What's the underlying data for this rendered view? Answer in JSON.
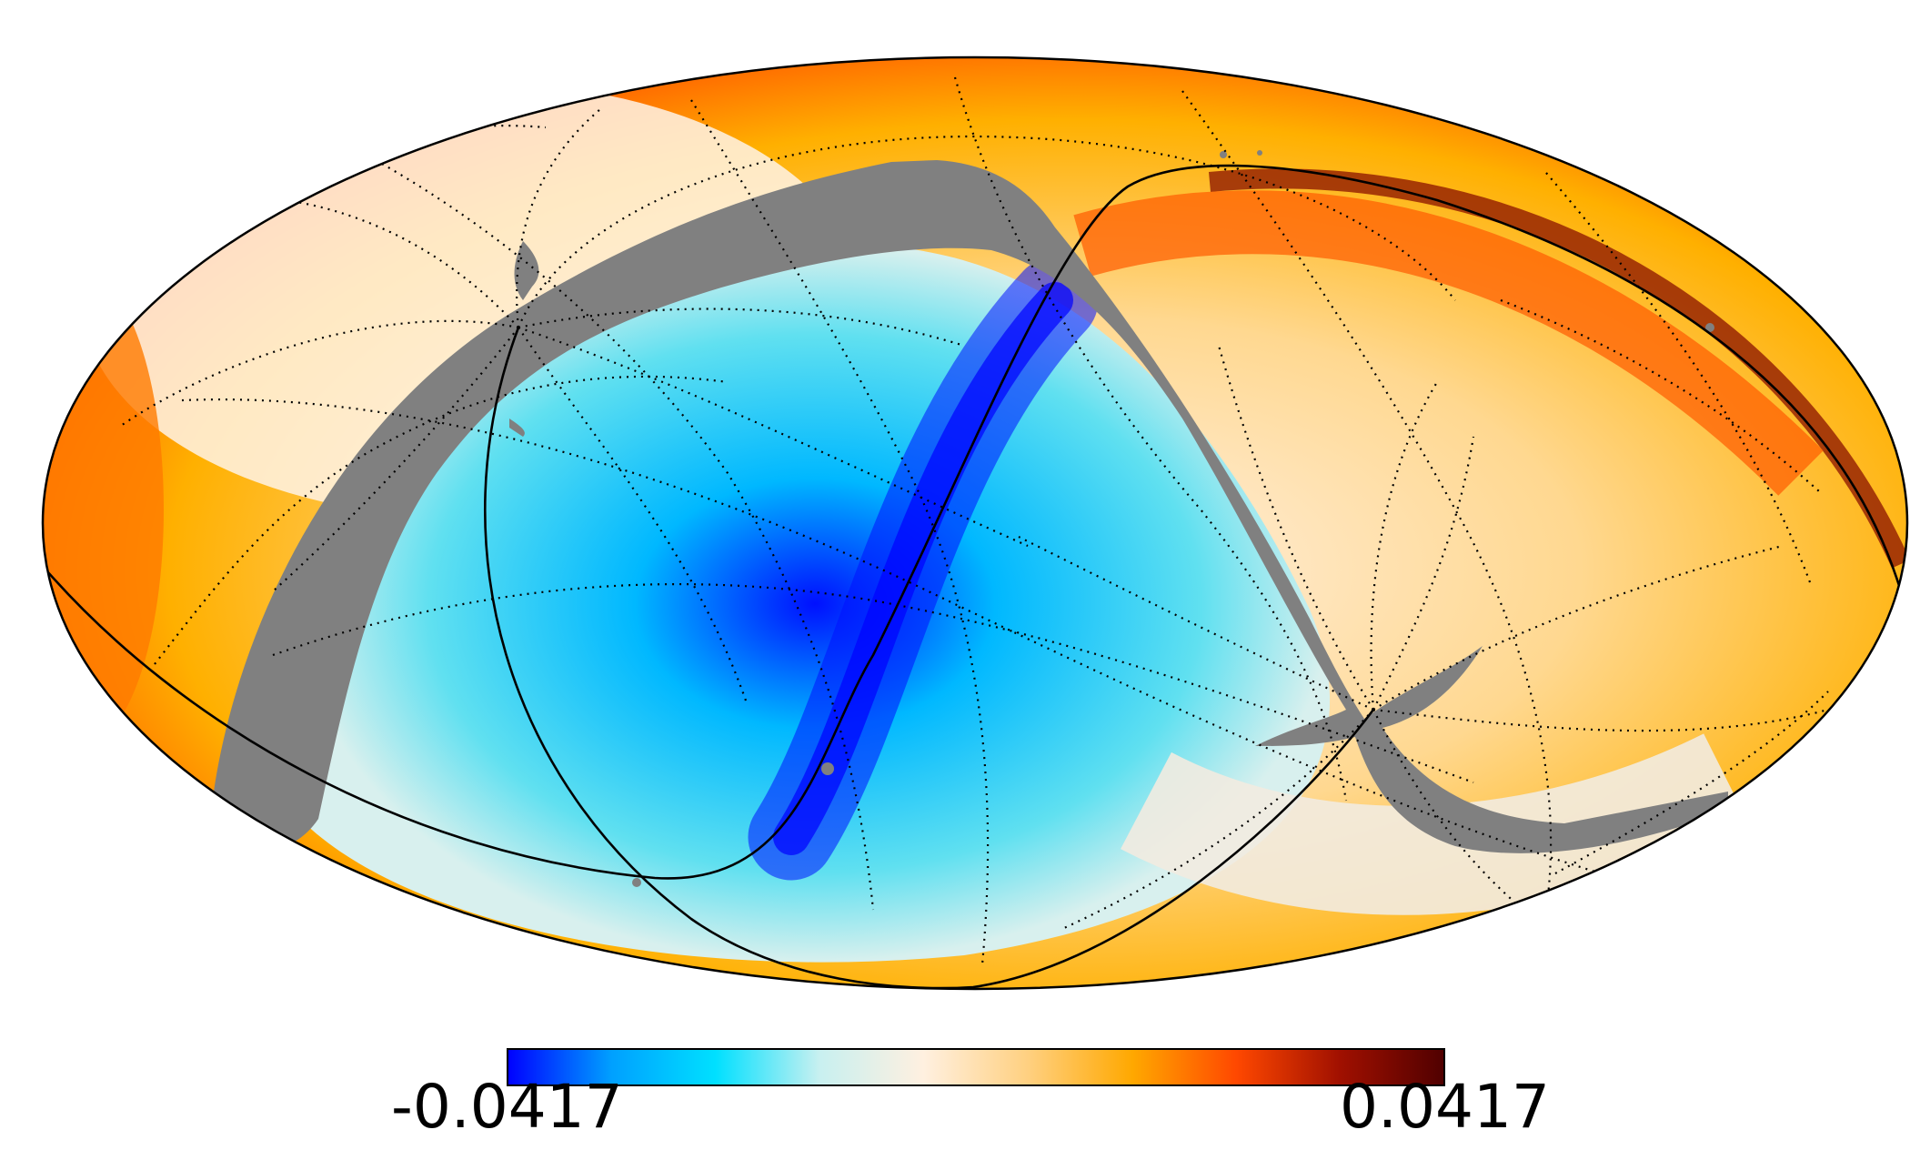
{
  "map": {
    "projection": "mollweide",
    "mask_color": "#808080",
    "graticule": "dotted"
  },
  "colorbar": {
    "min_label": "-0.0417",
    "max_label": "0.0417",
    "colormap": [
      "#0000ff",
      "#00a0ff",
      "#00e0ff",
      "#c8f0f0",
      "#fff0e0",
      "#ffd080",
      "#ffa800",
      "#ff4800",
      "#a01000",
      "#500000"
    ]
  }
}
